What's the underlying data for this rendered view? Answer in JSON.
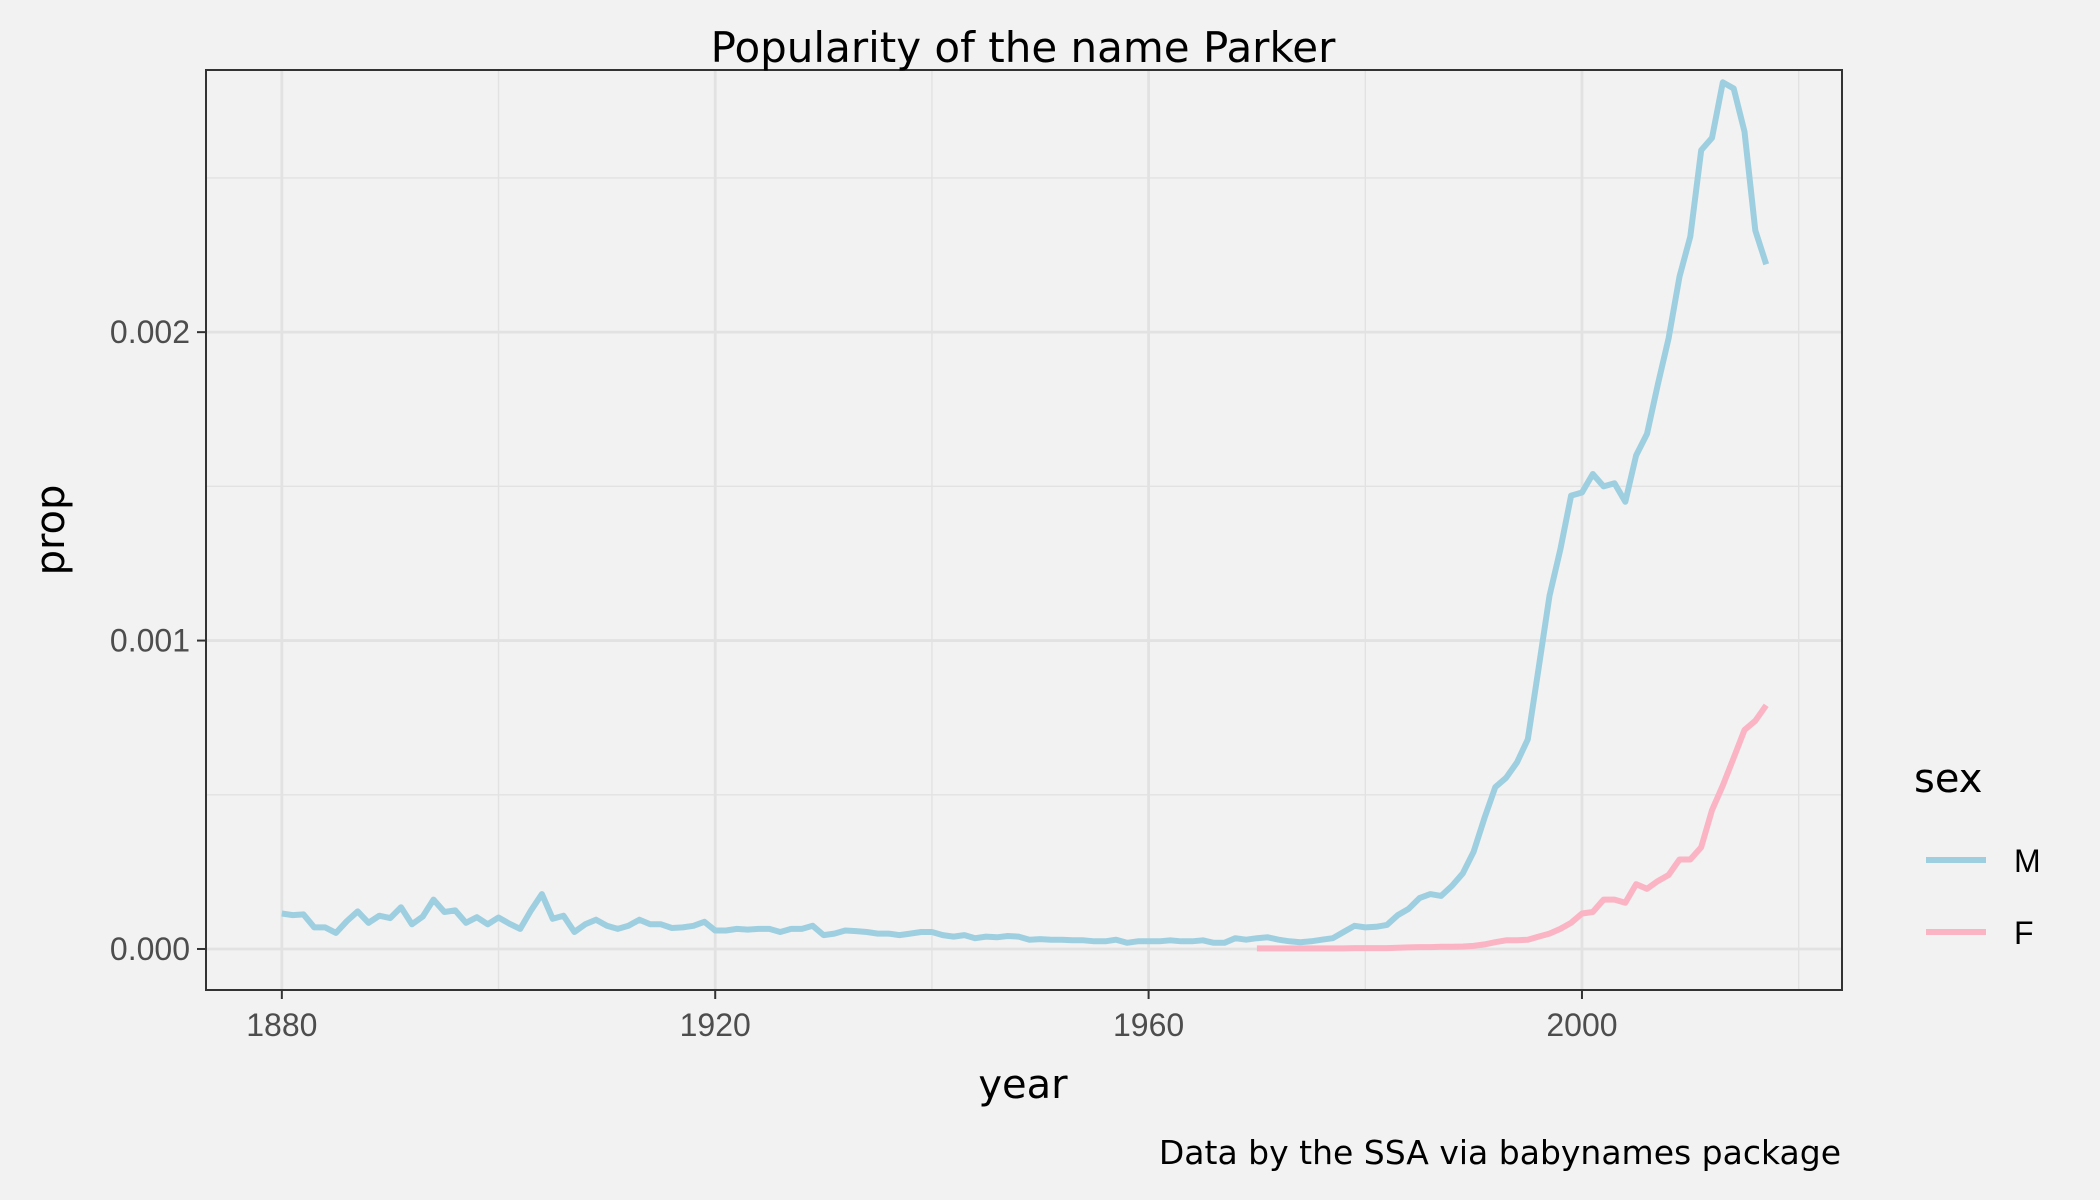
{
  "chart_data": {
    "type": "line",
    "title": "Popularity of the name Parker",
    "xlabel": "year",
    "ylabel": "prop",
    "caption": "Data by the SSA via babynames package",
    "xlim": [
      1873,
      2024
    ],
    "ylim": [
      -0.000133,
      0.00285
    ],
    "x_ticks": [
      1880,
      1920,
      1960,
      2000
    ],
    "x_tick_labels": [
      "1880",
      "1920",
      "1960",
      "2000"
    ],
    "y_ticks": [
      0,
      0.001,
      0.002
    ],
    "y_tick_labels": [
      "0.000",
      "0.001",
      "0.002"
    ],
    "grid": true,
    "legend": {
      "title": "sex",
      "placement": "right",
      "entries": [
        "M",
        "F"
      ]
    },
    "colors": {
      "M": "#9ecfe0",
      "F": "#fbb4c4",
      "background": "#f2f2f2",
      "grid": "#e2e2e2"
    },
    "series": [
      {
        "name": "M",
        "x": [
          1880,
          1881,
          1882,
          1883,
          1884,
          1885,
          1886,
          1887,
          1888,
          1889,
          1890,
          1891,
          1892,
          1893,
          1894,
          1895,
          1896,
          1897,
          1898,
          1899,
          1900,
          1901,
          1902,
          1903,
          1904,
          1905,
          1906,
          1907,
          1908,
          1909,
          1910,
          1911,
          1912,
          1913,
          1914,
          1915,
          1916,
          1917,
          1918,
          1919,
          1920,
          1921,
          1922,
          1923,
          1924,
          1925,
          1926,
          1927,
          1928,
          1929,
          1930,
          1931,
          1932,
          1933,
          1934,
          1935,
          1936,
          1937,
          1938,
          1939,
          1940,
          1941,
          1942,
          1943,
          1944,
          1945,
          1946,
          1947,
          1948,
          1949,
          1950,
          1951,
          1952,
          1953,
          1954,
          1955,
          1956,
          1957,
          1958,
          1959,
          1960,
          1961,
          1962,
          1963,
          1964,
          1965,
          1966,
          1967,
          1968,
          1969,
          1970,
          1971,
          1972,
          1973,
          1974,
          1975,
          1976,
          1977,
          1978,
          1979,
          1980,
          1981,
          1982,
          1983,
          1984,
          1985,
          1986,
          1987,
          1988,
          1989,
          1990,
          1991,
          1992,
          1993,
          1994,
          1995,
          1996,
          1997,
          1998,
          1999,
          2000,
          2001,
          2002,
          2003,
          2004,
          2005,
          2006,
          2007,
          2008,
          2009,
          2010,
          2011,
          2012,
          2013,
          2014,
          2015,
          2016,
          2017
        ],
        "values": [
          0.000115,
          0.00011,
          0.000112,
          7e-05,
          7e-05,
          5.2e-05,
          9e-05,
          0.000122,
          8.5e-05,
          0.000108,
          0.0001,
          0.000135,
          8e-05,
          0.000105,
          0.00016,
          0.00012,
          0.000125,
          8.5e-05,
          0.000103,
          8e-05,
          0.000102,
          8.2e-05,
          6.5e-05,
          0.000125,
          0.000178,
          9.8e-05,
          0.000108,
          5.5e-05,
          8e-05,
          9.5e-05,
          7.5e-05,
          6.5e-05,
          7.5e-05,
          9.5e-05,
          8e-05,
          8e-05,
          6.8e-05,
          7e-05,
          7.5e-05,
          8.8e-05,
          6e-05,
          6e-05,
          6.5e-05,
          6.3e-05,
          6.5e-05,
          6.5e-05,
          5.5e-05,
          6.5e-05,
          6.5e-05,
          7.5e-05,
          4.5e-05,
          5e-05,
          6e-05,
          5.8e-05,
          5.5e-05,
          5e-05,
          5e-05,
          4.5e-05,
          5e-05,
          5.5e-05,
          5.5e-05,
          4.5e-05,
          4e-05,
          4.5e-05,
          3.5e-05,
          4e-05,
          3.8e-05,
          4.2e-05,
          4e-05,
          3e-05,
          3.2e-05,
          3e-05,
          3e-05,
          2.8e-05,
          2.8e-05,
          2.5e-05,
          2.5e-05,
          3e-05,
          2e-05,
          2.5e-05,
          2.5e-05,
          2.5e-05,
          2.8e-05,
          2.5e-05,
          2.5e-05,
          2.8e-05,
          2e-05,
          2e-05,
          3.5e-05,
          3e-05,
          3.5e-05,
          3.8e-05,
          3e-05,
          2.5e-05,
          2.2e-05,
          2.5e-05,
          3e-05,
          3.5e-05,
          5.5e-05,
          7.5e-05,
          7e-05,
          7.2e-05,
          7.8e-05,
          0.00011,
          0.00013,
          0.000165,
          0.000178,
          0.000172,
          0.000205,
          0.000245,
          0.000315,
          0.000425,
          0.000525,
          0.000555,
          0.000605,
          0.00068,
          0.00091,
          0.001145,
          0.001295,
          0.00147,
          0.00148,
          0.00154,
          0.0015,
          0.00151,
          0.00145,
          0.0016,
          0.00167,
          0.00183,
          0.00198,
          0.00218,
          0.00231,
          0.00259,
          0.00263,
          0.00281,
          0.00279,
          0.00265,
          0.00233,
          0.00222
        ]
      },
      {
        "name": "F",
        "x": [
          1970,
          1971,
          1972,
          1973,
          1974,
          1975,
          1976,
          1977,
          1978,
          1979,
          1980,
          1981,
          1982,
          1983,
          1984,
          1985,
          1986,
          1987,
          1988,
          1989,
          1990,
          1991,
          1992,
          1993,
          1994,
          1995,
          1996,
          1997,
          1998,
          1999,
          2000,
          2001,
          2002,
          2003,
          2004,
          2005,
          2006,
          2007,
          2008,
          2009,
          2010,
          2011,
          2012,
          2013,
          2014,
          2015,
          2016,
          2017
        ],
        "values": [
          2e-06,
          2e-06,
          2e-06,
          2e-06,
          2e-06,
          2e-06,
          2e-06,
          2e-06,
          2e-06,
          3e-06,
          3e-06,
          3e-06,
          3e-06,
          4e-06,
          5e-06,
          6e-06,
          6e-06,
          7e-06,
          7e-06,
          8e-06,
          1e-05,
          1.5e-05,
          2.2e-05,
          2.8e-05,
          2.8e-05,
          3e-05,
          4e-05,
          5e-05,
          6.5e-05,
          8.5e-05,
          0.000115,
          0.00012,
          0.00016,
          0.00016,
          0.00015,
          0.00021,
          0.000195,
          0.00022,
          0.00024,
          0.00029,
          0.00029,
          0.00033,
          0.00045,
          0.00053,
          0.00062,
          0.00071,
          0.00074,
          0.00079
        ]
      }
    ]
  }
}
